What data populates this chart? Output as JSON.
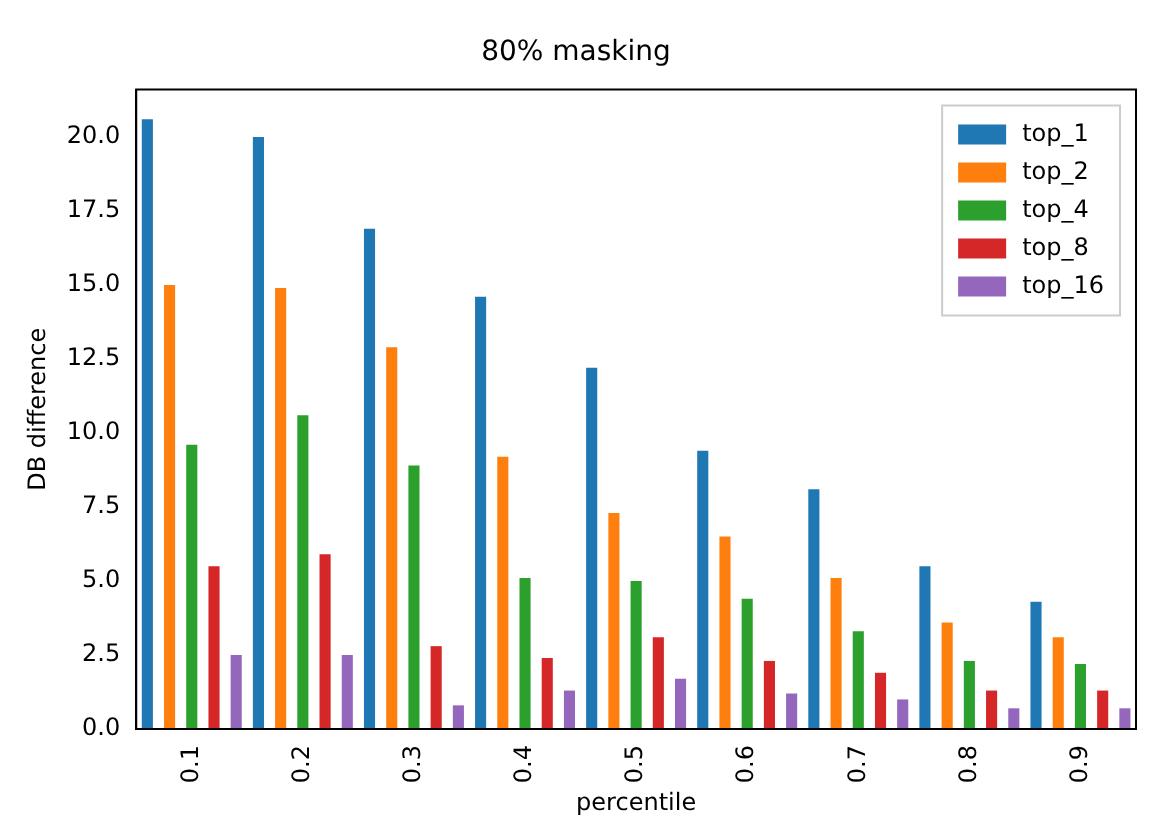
{
  "chart_data": {
    "type": "bar",
    "title": "80% masking",
    "xlabel": "percentile",
    "ylabel": "DB difference",
    "categories": [
      "0.1",
      "0.2",
      "0.3",
      "0.4",
      "0.5",
      "0.6",
      "0.7",
      "0.8",
      "0.9"
    ],
    "series": [
      {
        "name": "top_1",
        "color": "#1f77b4",
        "values": [
          20.6,
          20.0,
          16.9,
          14.6,
          12.2,
          9.4,
          8.1,
          5.5,
          4.3
        ]
      },
      {
        "name": "top_2",
        "color": "#ff7f0e",
        "values": [
          15.0,
          14.9,
          12.9,
          9.2,
          7.3,
          6.5,
          5.1,
          3.6,
          3.1
        ]
      },
      {
        "name": "top_4",
        "color": "#2ca02c",
        "values": [
          9.6,
          10.6,
          8.9,
          5.1,
          5.0,
          4.4,
          3.3,
          2.3,
          2.2
        ]
      },
      {
        "name": "top_8",
        "color": "#d62728",
        "values": [
          5.5,
          5.9,
          2.8,
          2.4,
          3.1,
          2.3,
          1.9,
          1.3,
          1.3
        ]
      },
      {
        "name": "top_16",
        "color": "#9467bd",
        "values": [
          2.5,
          2.5,
          0.8,
          1.3,
          1.7,
          1.2,
          1.0,
          0.7,
          0.7
        ]
      }
    ],
    "ylim": [
      0,
      21.6
    ],
    "yticks": [
      {
        "value": 0,
        "label": "0.0"
      },
      {
        "value": 2.5,
        "label": "2.5"
      },
      {
        "value": 5,
        "label": "5.0"
      },
      {
        "value": 7.5,
        "label": "7.5"
      },
      {
        "value": 10,
        "label": "10.0"
      },
      {
        "value": 12.5,
        "label": "12.5"
      },
      {
        "value": 15,
        "label": "15.0"
      },
      {
        "value": 17.5,
        "label": "17.5"
      },
      {
        "value": 20,
        "label": "20.0"
      }
    ],
    "grid": false,
    "legend": "top right"
  }
}
